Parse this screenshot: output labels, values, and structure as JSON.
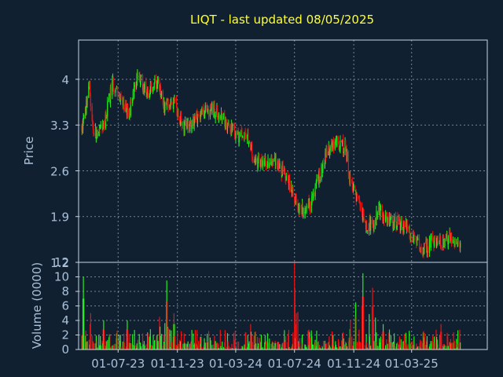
{
  "chart_data": {
    "type": "candlestick",
    "title": "LIQT - last updated 08/05/2025",
    "ylabel_price": "Price",
    "ylabel_volume": "Volume (0000)",
    "price_ticks": [
      "4",
      "3.3",
      "2.6",
      "1.9",
      "1.2"
    ],
    "volume_ticks": [
      "12",
      "10",
      "8",
      "6",
      "4",
      "2",
      "0"
    ],
    "x_ticks": [
      "01-07-23",
      "01-11-23",
      "01-03-24",
      "01-07-24",
      "01-11-24",
      "01-03-25"
    ],
    "price_ylim": [
      1.2,
      4.6
    ],
    "volume_ylim": [
      0,
      12
    ],
    "grid": true,
    "colors": {
      "up": "#22ee22",
      "down": "#ee1111",
      "background": "#102030",
      "title": "#ffff33",
      "text": "#a9c0d8"
    },
    "price_trend": [
      [
        "2023-04-15",
        3.2
      ],
      [
        "2023-04-25",
        3.5
      ],
      [
        "2023-05-01",
        4.05
      ],
      [
        "2023-05-10",
        3.15
      ],
      [
        "2023-06-01",
        3.3
      ],
      [
        "2023-06-20",
        3.95
      ],
      [
        "2023-07-10",
        3.6
      ],
      [
        "2023-07-25",
        3.5
      ],
      [
        "2023-08-10",
        4.05
      ],
      [
        "2023-09-01",
        3.8
      ],
      [
        "2023-09-20",
        3.95
      ],
      [
        "2023-10-05",
        3.6
      ],
      [
        "2023-10-25",
        3.65
      ],
      [
        "2023-11-15",
        3.25
      ],
      [
        "2023-12-15",
        3.45
      ],
      [
        "2024-01-10",
        3.55
      ],
      [
        "2024-02-01",
        3.4
      ],
      [
        "2024-03-01",
        3.15
      ],
      [
        "2024-03-25",
        3.1
      ],
      [
        "2024-04-10",
        2.75
      ],
      [
        "2024-05-01",
        2.7
      ],
      [
        "2024-05-20",
        2.8
      ],
      [
        "2024-06-05",
        2.6
      ],
      [
        "2024-06-20",
        2.4
      ],
      [
        "2024-07-05",
        2.1
      ],
      [
        "2024-07-20",
        2.0
      ],
      [
        "2024-08-05",
        2.1
      ],
      [
        "2024-08-20",
        2.5
      ],
      [
        "2024-09-05",
        2.85
      ],
      [
        "2024-09-25",
        3.05
      ],
      [
        "2024-10-15",
        2.95
      ],
      [
        "2024-10-25",
        2.4
      ],
      [
        "2024-11-10",
        2.1
      ],
      [
        "2024-11-25",
        1.8
      ],
      [
        "2024-12-10",
        1.75
      ],
      [
        "2024-12-25",
        2.0
      ],
      [
        "2025-01-10",
        1.8
      ],
      [
        "2025-02-01",
        1.8
      ],
      [
        "2025-02-20",
        1.7
      ],
      [
        "2025-03-10",
        1.5
      ],
      [
        "2025-03-25",
        1.38
      ],
      [
        "2025-04-10",
        1.5
      ],
      [
        "2025-05-01",
        1.52
      ],
      [
        "2025-05-20",
        1.58
      ],
      [
        "2025-06-10",
        1.45
      ]
    ],
    "volume_spikes": [
      [
        "2023-04-20",
        10.0
      ],
      [
        "2023-05-05",
        5.0
      ],
      [
        "2023-06-01",
        4.0
      ],
      [
        "2023-07-20",
        4.0
      ],
      [
        "2023-09-25",
        4.5
      ],
      [
        "2023-10-10",
        9.5
      ],
      [
        "2023-10-25",
        5.0
      ],
      [
        "2024-04-01",
        3.5
      ],
      [
        "2024-07-01",
        12.0
      ],
      [
        "2024-07-05",
        5.0
      ],
      [
        "2024-10-25",
        4.0
      ],
      [
        "2024-11-05",
        6.5
      ],
      [
        "2024-11-20",
        10.5
      ],
      [
        "2024-12-10",
        8.5
      ],
      [
        "2025-01-01",
        3.5
      ],
      [
        "2025-05-01",
        3.5
      ]
    ]
  }
}
